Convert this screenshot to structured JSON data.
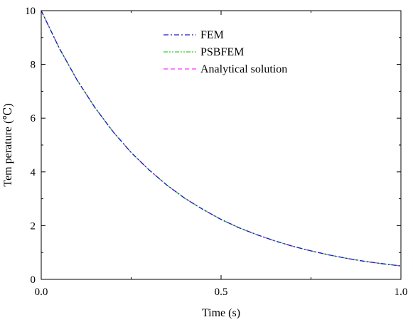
{
  "chart_data": {
    "type": "line",
    "title": "",
    "xlabel": "Time (s)",
    "ylabel": "Tem perature (℃)",
    "xlim": [
      0,
      1
    ],
    "ylim": [
      0,
      10
    ],
    "x_ticks": [
      "0.0",
      "0.5",
      "1.0"
    ],
    "y_ticks": [
      "0",
      "2",
      "4",
      "6",
      "8",
      "10"
    ],
    "grid": false,
    "legend_position": "top-center",
    "x": [
      0.0,
      0.05,
      0.1,
      0.15,
      0.2,
      0.25,
      0.3,
      0.35,
      0.4,
      0.45,
      0.5,
      0.55,
      0.6,
      0.65,
      0.7,
      0.75,
      0.8,
      0.85,
      0.9,
      0.95,
      1.0
    ],
    "series": [
      {
        "name": "FEM",
        "color": "#1a1acc",
        "dash": "dash-dot",
        "values": [
          10.0,
          8.61,
          7.41,
          6.38,
          5.49,
          4.72,
          4.07,
          3.5,
          3.01,
          2.6,
          2.23,
          1.92,
          1.66,
          1.43,
          1.23,
          1.06,
          0.91,
          0.78,
          0.67,
          0.58,
          0.5
        ]
      },
      {
        "name": "PSBFEM",
        "color": "#33cc33",
        "dash": "dash-dot-dot",
        "values": [
          10.0,
          8.61,
          7.41,
          6.38,
          5.49,
          4.72,
          4.07,
          3.5,
          3.01,
          2.6,
          2.23,
          1.92,
          1.66,
          1.43,
          1.23,
          1.06,
          0.91,
          0.78,
          0.67,
          0.58,
          0.5
        ]
      },
      {
        "name": "Analytical solution",
        "color": "#ff33ff",
        "dash": "dashed",
        "values": [
          10.0,
          8.61,
          7.41,
          6.38,
          5.49,
          4.72,
          4.07,
          3.5,
          3.01,
          2.6,
          2.23,
          1.92,
          1.66,
          1.43,
          1.23,
          1.06,
          0.91,
          0.78,
          0.67,
          0.58,
          0.5
        ]
      }
    ]
  }
}
